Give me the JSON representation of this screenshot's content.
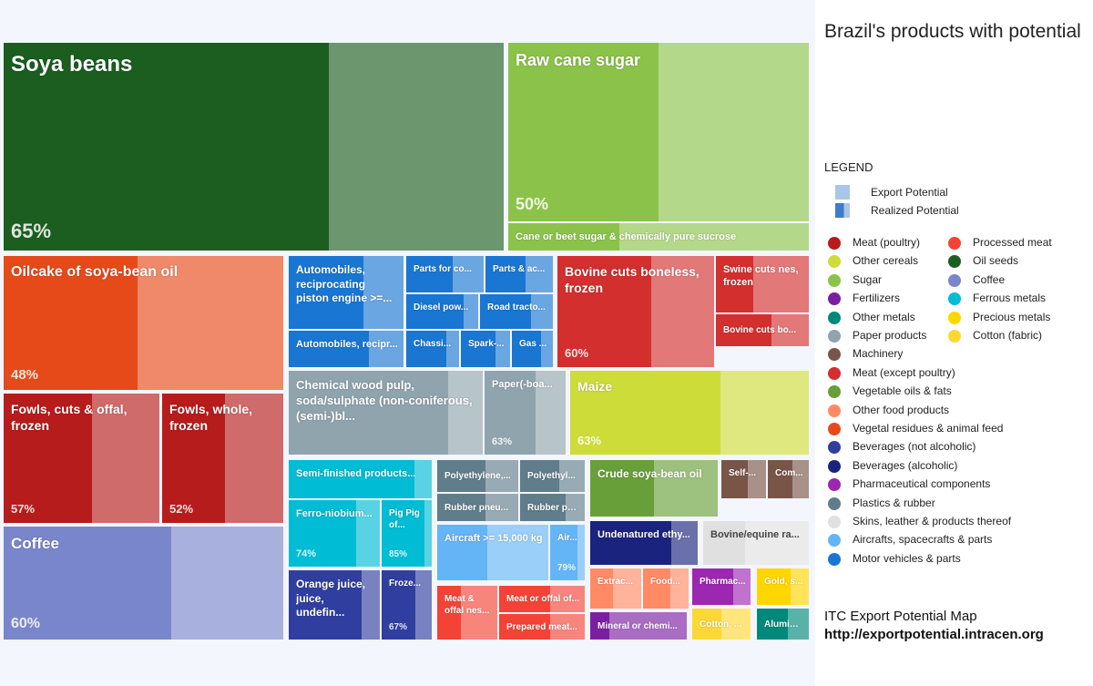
{
  "sidebar": {
    "title": "Brazil's products with potential",
    "legend_heading": "LEGEND",
    "export_potential_label": "Export Potential",
    "realized_potential_label": "Realized Potential",
    "footer_line1": "ITC Export Potential Map",
    "footer_line2": "http://exportpotential.intracen.org"
  },
  "legend_categories": [
    {
      "name": "Meat (poultry)",
      "color": "#b71c1c"
    },
    {
      "name": "Other cereals",
      "color": "#cddc39"
    },
    {
      "name": "Sugar",
      "color": "#8bc34a"
    },
    {
      "name": "Fertilizers",
      "color": "#7b1fa2"
    },
    {
      "name": "Other metals",
      "color": "#00897b"
    },
    {
      "name": "Paper products",
      "color": "#90a4ae"
    },
    {
      "name": "Machinery",
      "color": "#795548"
    },
    {
      "name": "Meat (except poultry)",
      "color": "#d32f2f"
    },
    {
      "name": "Vegetable oils & fats",
      "color": "#689f38"
    },
    {
      "name": "Other food products",
      "color": "#ff8a65"
    },
    {
      "name": "Vegetal residues & animal feed",
      "color": "#e64a19"
    },
    {
      "name": "Beverages (not alcoholic)",
      "color": "#303f9f"
    },
    {
      "name": "Beverages (alcoholic)",
      "color": "#1a237e"
    },
    {
      "name": "Pharmaceutical components",
      "color": "#9c27b0"
    },
    {
      "name": "Plastics & rubber",
      "color": "#607d8b"
    },
    {
      "name": "Skins, leather & products thereof",
      "color": "#e0e0e0"
    },
    {
      "name": "Aircrafts, spacecrafts & parts",
      "color": "#64b5f6"
    },
    {
      "name": "Motor vehicles & parts",
      "color": "#1976d2"
    },
    {
      "name": "Processed meat",
      "color": "#f44336"
    },
    {
      "name": "Oil seeds",
      "color": "#1b5e20"
    },
    {
      "name": "Coffee",
      "color": "#7986cb"
    },
    {
      "name": "Ferrous metals",
      "color": "#00bcd4"
    },
    {
      "name": "Precious metals",
      "color": "#ffd600"
    },
    {
      "name": "Cotton (fabric)",
      "color": "#fdd835"
    }
  ],
  "chart_data": {
    "type": "treemap",
    "title": "Brazil's products with potential",
    "items": [
      {
        "label": "Soya beans",
        "category": "Oil seeds",
        "realized": 65,
        "realized_label": "65%"
      },
      {
        "label": "Raw cane sugar",
        "category": "Sugar",
        "realized": 50,
        "realized_label": "50%"
      },
      {
        "label": "Cane or beet sugar & chemically pure sucrose",
        "category": "Sugar",
        "realized": 37
      },
      {
        "label": "Oilcake of soya-bean oil",
        "category": "Vegetal residues & animal feed",
        "realized": 48,
        "realized_label": "48%"
      },
      {
        "label": "Fowls, cuts & offal, frozen",
        "category": "Meat (poultry)",
        "realized": 57,
        "realized_label": "57%"
      },
      {
        "label": "Fowls, whole, frozen",
        "category": "Meat (poultry)",
        "realized": 52,
        "realized_label": "52%"
      },
      {
        "label": "Coffee",
        "category": "Coffee",
        "realized": 60,
        "realized_label": "60%"
      },
      {
        "label": "Automobiles, reciprocating piston engine >=...",
        "category": "Motor vehicles & parts",
        "realized": 65
      },
      {
        "label": "Automobiles, recipr...",
        "category": "Motor vehicles & parts",
        "realized": 70
      },
      {
        "label": "Parts for co...",
        "category": "Motor vehicles & parts",
        "realized": 60
      },
      {
        "label": "Parts & ac...",
        "category": "Motor vehicles & parts",
        "realized": 60
      },
      {
        "label": "Diesel pow...",
        "category": "Motor vehicles & parts",
        "realized": 80
      },
      {
        "label": "Road tracto...",
        "category": "Motor vehicles & parts",
        "realized": 70
      },
      {
        "label": "Chassi...",
        "category": "Motor vehicles & parts",
        "realized": 75
      },
      {
        "label": "Spark-...",
        "category": "Motor vehicles & parts",
        "realized": 70
      },
      {
        "label": "Gas ...",
        "category": "Motor vehicles & parts",
        "realized": 70
      },
      {
        "label": "Bovine cuts boneless, frozen",
        "category": "Meat (except poultry)",
        "realized": 60,
        "realized_label": "60%"
      },
      {
        "label": "Swine cuts nes, frozen",
        "category": "Meat (except poultry)",
        "realized": 40
      },
      {
        "label": "Bovine cuts bo...",
        "category": "Meat (except poultry)",
        "realized": 60
      },
      {
        "label": "Chemical wood pulp, soda/sulphate (non-coniferous, (semi-)bl...",
        "category": "Paper products",
        "realized": 82
      },
      {
        "label": "Paper(-boa...",
        "category": "Paper products",
        "realized": 63,
        "realized_label": "63%"
      },
      {
        "label": "Maize",
        "category": "Other cereals",
        "realized": 63,
        "realized_label": "63%"
      },
      {
        "label": "Semi-finished products...",
        "category": "Ferrous metals",
        "realized": 88
      },
      {
        "label": "Ferro-niobium...",
        "category": "Ferrous metals",
        "realized": 74,
        "realized_label": "74%"
      },
      {
        "label": "Pig Pig of...",
        "category": "Ferrous metals",
        "realized": 85,
        "realized_label": "85%"
      },
      {
        "label": "Orange juice, juice, undefin...",
        "category": "Beverages (not alcoholic)",
        "realized": 80
      },
      {
        "label": "Froze...",
        "category": "Beverages (not alcoholic)",
        "realized": 67,
        "realized_label": "67%"
      },
      {
        "label": "Polyethylene,...",
        "category": "Plastics & rubber",
        "realized": 60
      },
      {
        "label": "Polyethyl...",
        "category": "Plastics & rubber",
        "realized": 60
      },
      {
        "label": "Rubber pneu...",
        "category": "Plastics & rubber",
        "realized": 60
      },
      {
        "label": "Rubber pn...",
        "category": "Plastics & rubber",
        "realized": 70
      },
      {
        "label": "Aircraft >= 15,000 kg",
        "category": "Aircrafts, spacecrafts & parts",
        "realized": 45
      },
      {
        "label": "Air...",
        "category": "Aircrafts, spacecrafts & parts",
        "realized": 79,
        "realized_label": "79%"
      },
      {
        "label": "Meat & offal nes...",
        "category": "Processed meat",
        "realized": 40
      },
      {
        "label": "Meat or offal of...",
        "category": "Processed meat",
        "realized": 60
      },
      {
        "label": "Prepared meat...",
        "category": "Processed meat",
        "realized": 60
      },
      {
        "label": "Crude soya-bean oil",
        "category": "Vegetable oils & fats",
        "realized": 50
      },
      {
        "label": "Self-...",
        "category": "Machinery",
        "realized": 60
      },
      {
        "label": "Com...",
        "category": "Machinery",
        "realized": 60
      },
      {
        "label": "Undenatured ethy...",
        "category": "Beverages (alcoholic)",
        "realized": 75
      },
      {
        "label": "Bovine/equine ra...",
        "category": "Skins, leather & products thereof",
        "realized": 40
      },
      {
        "label": "Extrac...",
        "category": "Other food products",
        "realized": 45
      },
      {
        "label": "Food...",
        "category": "Other food products",
        "realized": 60
      },
      {
        "label": "Pharmac...",
        "category": "Pharmaceutical components",
        "realized": 70
      },
      {
        "label": "Gold, s...",
        "category": "Precious metals",
        "realized": 65
      },
      {
        "label": "Mineral or chemi...",
        "category": "Fertilizers",
        "realized": 20
      },
      {
        "label": "Cotton, ...",
        "category": "Cotton (fabric)",
        "realized": 50
      },
      {
        "label": "Alumini...",
        "category": "Other metals",
        "realized": 60
      }
    ]
  }
}
